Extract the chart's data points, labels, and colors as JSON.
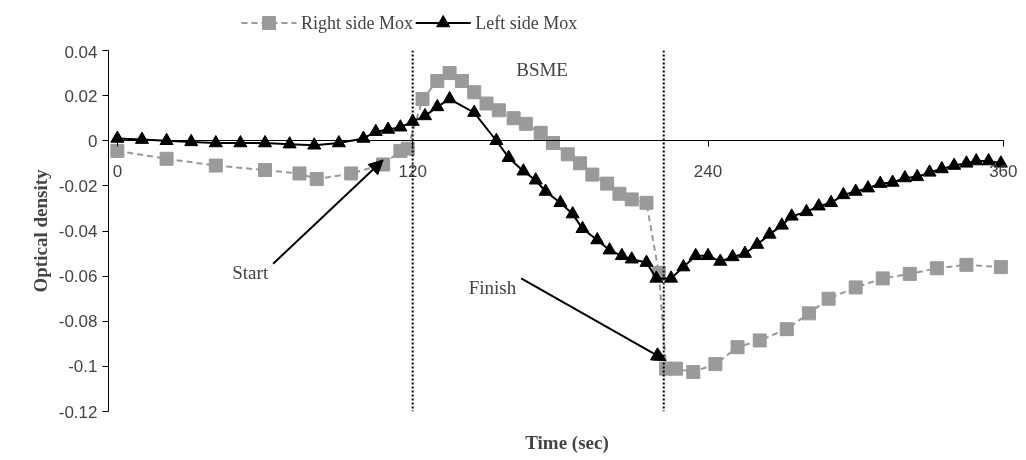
{
  "chart_data": {
    "type": "line",
    "xlabel": "Time (sec)",
    "ylabel": "Optical density",
    "xlim": [
      0,
      360
    ],
    "ylim": [
      -0.12,
      0.04
    ],
    "xticks": [
      0,
      120,
      240,
      360
    ],
    "yticks": [
      {
        "value": 0.04,
        "label": "0.04"
      },
      {
        "value": 0.02,
        "label": "0.02"
      },
      0,
      {
        "value": -0.02,
        "label": "-0.02"
      },
      {
        "value": -0.04,
        "label": "-0.04"
      },
      {
        "value": -0.06,
        "label": "-0.06"
      },
      {
        "value": -0.08,
        "label": "-0.08"
      },
      {
        "value": -0.1,
        "label": "-0.1"
      },
      {
        "value": -0.12,
        "label": "-0.12"
      }
    ],
    "grid": false,
    "legend": "top",
    "series": [
      {
        "name": "Right side Mox",
        "color": "#9a9a9a",
        "marker": "square",
        "line_style": "dashed",
        "x": [
          0,
          20,
          40,
          60,
          74,
          81,
          95,
          108,
          115,
          118,
          124,
          130,
          135,
          140,
          145,
          150,
          155,
          161,
          166,
          172,
          177,
          183,
          188,
          193,
          199,
          204,
          209,
          215,
          220,
          223,
          227,
          234,
          243,
          252,
          261,
          272,
          281,
          289,
          300,
          311,
          322,
          333,
          345,
          359
        ],
        "values": [
          -0.0045,
          -0.008,
          -0.011,
          -0.013,
          -0.0145,
          -0.017,
          -0.0145,
          -0.0105,
          -0.0045,
          -0.0035,
          0.0185,
          0.0265,
          0.03,
          0.0265,
          0.0215,
          0.0165,
          0.0135,
          0.01,
          0.0075,
          0.0035,
          -0.001,
          -0.006,
          -0.01,
          -0.015,
          -0.019,
          -0.0235,
          -0.026,
          -0.0275,
          -0.0585,
          -0.101,
          -0.101,
          -0.1025,
          -0.099,
          -0.0915,
          -0.0885,
          -0.0835,
          -0.0765,
          -0.07,
          -0.065,
          -0.061,
          -0.059,
          -0.0565,
          -0.055,
          -0.056
        ]
      },
      {
        "name": "Left side Mox",
        "color": "#000000",
        "marker": "triangle",
        "line_style": "solid",
        "x": [
          0,
          10,
          20,
          30,
          40,
          50,
          60,
          70,
          80,
          90,
          100,
          105,
          110,
          115,
          120,
          125,
          130,
          135,
          145,
          154,
          159,
          165,
          170,
          174,
          180,
          185,
          189,
          195,
          200,
          205,
          209,
          215,
          219,
          225,
          230,
          235,
          240,
          245,
          250,
          255,
          260,
          265,
          270,
          274,
          280,
          285,
          290,
          295,
          300,
          305,
          310,
          315,
          320,
          325,
          330,
          335,
          340,
          345,
          349,
          354,
          359
        ],
        "values": [
          0.001,
          0.0005,
          0.0,
          -0.0005,
          -0.001,
          -0.001,
          -0.001,
          -0.0015,
          -0.002,
          -0.001,
          0.001,
          0.004,
          0.005,
          0.006,
          0.0085,
          0.011,
          0.015,
          0.0185,
          0.0125,
          0.0,
          -0.0075,
          -0.0135,
          -0.0175,
          -0.0225,
          -0.0275,
          -0.0325,
          -0.039,
          -0.044,
          -0.0485,
          -0.051,
          -0.0525,
          -0.054,
          -0.061,
          -0.061,
          -0.056,
          -0.051,
          -0.051,
          -0.0535,
          -0.0515,
          -0.05,
          -0.046,
          -0.0415,
          -0.0375,
          -0.0335,
          -0.0315,
          -0.029,
          -0.0275,
          -0.024,
          -0.0225,
          -0.021,
          -0.019,
          -0.0185,
          -0.0165,
          -0.016,
          -0.014,
          -0.0125,
          -0.011,
          -0.01,
          -0.009,
          -0.009,
          -0.01
        ]
      }
    ],
    "ref_lines": [
      {
        "axis": "x",
        "value": 120,
        "line_style": "dotted",
        "color": "#000000"
      },
      {
        "axis": "x",
        "value": 222,
        "line_style": "dotted",
        "color": "#000000"
      }
    ],
    "annotations": [
      {
        "text": "Start",
        "x": 108,
        "y": -0.0085
      },
      {
        "text": "Finish",
        "x": 223,
        "y": -0.0975
      },
      "BSME"
    ]
  }
}
